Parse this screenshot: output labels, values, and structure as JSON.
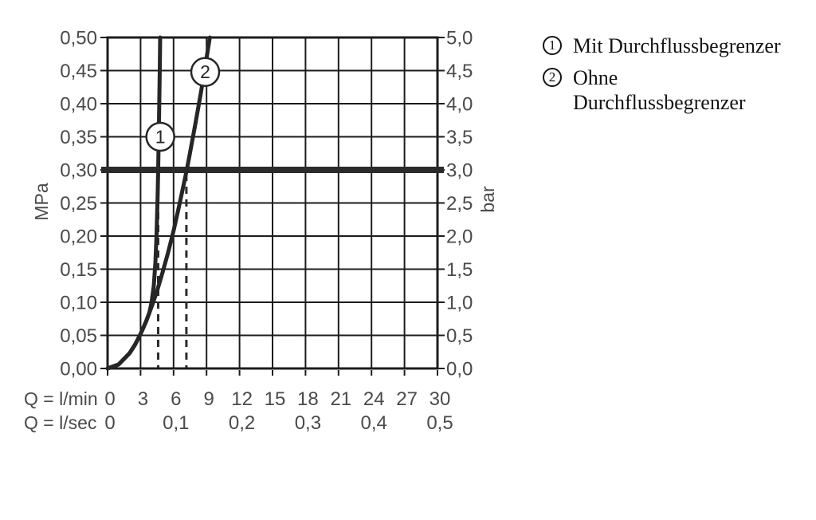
{
  "colors": {
    "background": "#ffffff",
    "grid": "#1c1c1c",
    "frame": "#1c1c1c",
    "curve": "#262626",
    "reference_line": "#2b2b2b",
    "dashed_guide": "#2b2b2b",
    "tick_text": "#4a4a4a",
    "legend_text": "#141414"
  },
  "legend": {
    "items": [
      {
        "marker": "1",
        "lines": [
          "Mit Durchflussbegrenzer",
          ""
        ]
      },
      {
        "marker": "2",
        "lines": [
          "Ohne",
          "Durchflussbegrenzer"
        ]
      }
    ]
  },
  "chart_data": {
    "type": "line",
    "title": "",
    "y_left": {
      "label": "MPa",
      "range": [
        0,
        0.5
      ],
      "step": 0.05,
      "ticks": [
        "0,50",
        "0,45",
        "0,40",
        "0,35",
        "0,30",
        "0,25",
        "0,20",
        "0,15",
        "0,10",
        "0,05",
        "0,00"
      ]
    },
    "y_right": {
      "label": "bar",
      "range": [
        0,
        5.0
      ],
      "step": 0.5,
      "ticks": [
        "5,0",
        "4,5",
        "4,0",
        "3,5",
        "3,0",
        "2,5",
        "2,0",
        "1,5",
        "1,0",
        "0,5",
        "0,0"
      ]
    },
    "x_lmin": {
      "label": "Q = l/min",
      "range": [
        0,
        30
      ],
      "step": 3,
      "ticks": [
        "0",
        "3",
        "6",
        "9",
        "12",
        "15",
        "18",
        "21",
        "24",
        "27",
        "30"
      ]
    },
    "x_lsec": {
      "label": "Q = l/sec",
      "ticks": [
        "0",
        "0,1",
        "0,2",
        "0,3",
        "0,4",
        "0,5"
      ],
      "at_lmin": [
        0,
        6,
        12,
        18,
        24,
        30
      ]
    },
    "grid": true,
    "legend_position": "top-right",
    "reference_line": {
      "value_mpa": 0.3,
      "value_bar": 3.0
    },
    "dashed_guides_q_lmin": [
      4.6,
      7.17
    ],
    "series": [
      {
        "name": "Mit Durchflussbegrenzer",
        "marker": "1",
        "marker_at": {
          "q": 4.8,
          "p": 0.35
        },
        "points_q_lmin_p_mpa": [
          [
            0,
            0
          ],
          [
            1,
            0.006
          ],
          [
            2,
            0.023
          ],
          [
            2.5,
            0.036
          ],
          [
            3,
            0.052
          ],
          [
            3.5,
            0.071
          ],
          [
            3.8,
            0.084
          ],
          [
            4.0,
            0.1
          ],
          [
            4.2,
            0.125
          ],
          [
            4.35,
            0.16
          ],
          [
            4.45,
            0.2
          ],
          [
            4.55,
            0.26
          ],
          [
            4.6,
            0.3
          ],
          [
            4.68,
            0.38
          ],
          [
            4.75,
            0.46
          ],
          [
            4.78,
            0.5
          ]
        ]
      },
      {
        "name": "Ohne Durchflussbegrenzer",
        "marker": "2",
        "marker_at": {
          "q": 8.88,
          "p": 0.448
        },
        "points_q_lmin_p_mpa": [
          [
            0,
            0
          ],
          [
            1,
            0.006
          ],
          [
            2,
            0.023
          ],
          [
            2.5,
            0.036
          ],
          [
            3,
            0.052
          ],
          [
            3.5,
            0.071
          ],
          [
            4,
            0.093
          ],
          [
            4.5,
            0.117
          ],
          [
            5,
            0.145
          ],
          [
            5.5,
            0.175
          ],
          [
            6,
            0.208
          ],
          [
            6.5,
            0.245
          ],
          [
            7,
            0.284
          ],
          [
            7.2,
            0.3
          ],
          [
            7.5,
            0.326
          ],
          [
            8,
            0.371
          ],
          [
            8.5,
            0.418
          ],
          [
            9,
            0.469
          ],
          [
            9.3,
            0.5
          ]
        ]
      }
    ]
  }
}
